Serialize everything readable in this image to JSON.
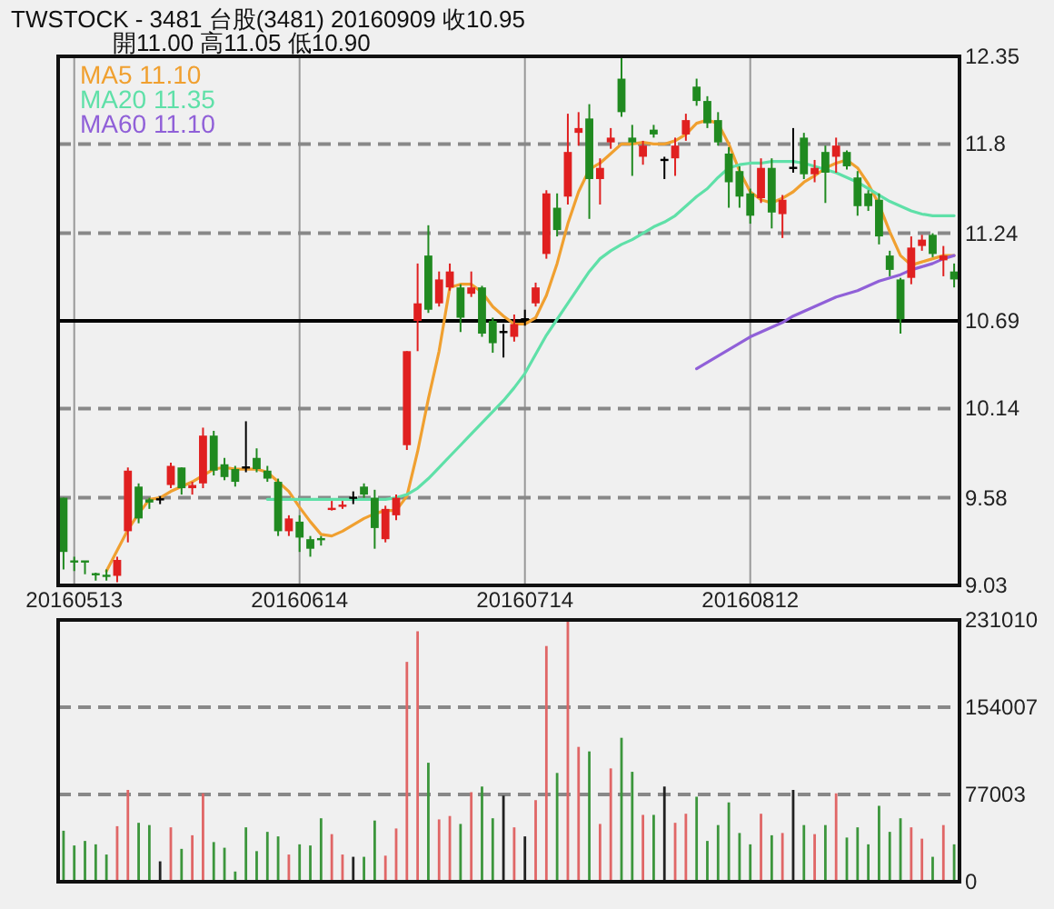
{
  "chart_data": [
    {
      "type": "candlestick",
      "title": "TWSTOCK - 3481 台股(3481) 20160909 收10.95",
      "subtitle": "開11.00 高11.05 低10.90",
      "categories": [
        null,
        "20160513",
        null,
        null,
        null,
        null,
        null,
        null,
        null,
        null,
        null,
        null,
        null,
        null,
        null,
        null,
        null,
        null,
        null,
        null,
        null,
        null,
        "20160614",
        null,
        null,
        null,
        null,
        null,
        null,
        null,
        null,
        null,
        null,
        null,
        null,
        null,
        null,
        null,
        null,
        null,
        null,
        null,
        null,
        "20160714",
        null,
        null,
        null,
        null,
        null,
        null,
        null,
        null,
        null,
        null,
        null,
        null,
        null,
        null,
        null,
        null,
        null,
        null,
        null,
        null,
        "20160812",
        null,
        null,
        null,
        null,
        null,
        null,
        null,
        null,
        null,
        null,
        null,
        null,
        null,
        null,
        null,
        null,
        null,
        null,
        null
      ],
      "ohlc": [
        [
          9.58,
          9.58,
          9.13,
          9.24
        ],
        [
          9.18,
          9.21,
          9.12,
          9.17
        ],
        [
          9.18,
          9.18,
          9.1,
          9.17
        ],
        [
          9.1,
          9.11,
          9.06,
          9.09
        ],
        [
          9.09,
          9.13,
          9.06,
          9.08
        ],
        [
          9.09,
          9.21,
          9.05,
          9.19
        ],
        [
          9.37,
          9.77,
          9.3,
          9.75
        ],
        [
          9.65,
          9.67,
          9.42,
          9.45
        ],
        [
          9.57,
          9.58,
          9.51,
          9.55
        ],
        [
          9.57,
          9.59,
          9.54,
          9.57
        ],
        [
          9.66,
          9.8,
          9.64,
          9.78
        ],
        [
          9.77,
          9.77,
          9.6,
          9.64
        ],
        [
          9.64,
          9.68,
          9.6,
          9.66
        ],
        [
          9.67,
          10.02,
          9.64,
          9.97
        ],
        [
          9.97,
          10.0,
          9.72,
          9.75
        ],
        [
          9.79,
          9.83,
          9.69,
          9.71
        ],
        [
          9.76,
          9.78,
          9.65,
          9.68
        ],
        [
          9.77,
          10.06,
          9.74,
          9.77
        ],
        [
          9.83,
          9.89,
          9.74,
          9.76
        ],
        [
          9.75,
          9.78,
          9.68,
          9.7
        ],
        [
          9.68,
          9.7,
          9.34,
          9.37
        ],
        [
          9.37,
          9.47,
          9.34,
          9.45
        ],
        [
          9.43,
          9.47,
          9.24,
          9.33
        ],
        [
          9.32,
          9.34,
          9.21,
          9.26
        ],
        [
          9.32,
          9.34,
          9.28,
          9.31
        ],
        [
          9.51,
          9.56,
          9.5,
          9.52
        ],
        [
          9.53,
          9.56,
          9.51,
          9.54
        ],
        [
          9.58,
          9.62,
          9.54,
          9.58
        ],
        [
          9.65,
          9.67,
          9.58,
          9.6
        ],
        [
          9.58,
          9.63,
          9.26,
          9.39
        ],
        [
          9.32,
          9.53,
          9.3,
          9.51
        ],
        [
          9.47,
          9.6,
          9.44,
          9.58
        ],
        [
          9.91,
          10.5,
          9.88,
          10.5
        ],
        [
          10.69,
          11.05,
          10.5,
          10.8
        ],
        [
          11.1,
          11.29,
          10.74,
          10.76
        ],
        [
          10.8,
          11.0,
          10.78,
          10.95
        ],
        [
          10.9,
          11.05,
          10.88,
          11.0
        ],
        [
          10.9,
          10.92,
          10.62,
          10.71
        ],
        [
          10.86,
          11.0,
          10.84,
          10.9
        ],
        [
          10.9,
          10.91,
          10.59,
          10.61
        ],
        [
          10.69,
          10.71,
          10.49,
          10.55
        ],
        [
          10.62,
          10.67,
          10.46,
          10.62
        ],
        [
          10.59,
          10.73,
          10.56,
          10.67
        ],
        [
          10.7,
          10.76,
          10.66,
          10.7
        ],
        [
          10.8,
          10.93,
          10.78,
          10.9
        ],
        [
          11.11,
          11.51,
          11.08,
          11.49
        ],
        [
          11.4,
          11.49,
          11.22,
          11.26
        ],
        [
          11.47,
          11.99,
          11.42,
          11.75
        ],
        [
          11.87,
          12.0,
          11.79,
          11.9
        ],
        [
          11.96,
          12.05,
          11.33,
          11.58
        ],
        [
          11.58,
          11.71,
          11.42,
          11.65
        ],
        [
          11.81,
          11.9,
          11.77,
          11.84
        ],
        [
          12.21,
          12.35,
          11.97,
          12.0
        ],
        [
          11.84,
          11.92,
          11.6,
          11.81
        ],
        [
          11.72,
          11.82,
          11.67,
          11.79
        ],
        [
          11.89,
          11.92,
          11.84,
          11.86
        ],
        [
          11.7,
          11.72,
          11.58,
          11.7
        ],
        [
          11.71,
          11.84,
          11.6,
          11.79
        ],
        [
          11.86,
          11.99,
          11.82,
          11.95
        ],
        [
          12.16,
          12.21,
          12.04,
          12.07
        ],
        [
          12.07,
          12.1,
          11.9,
          11.93
        ],
        [
          11.95,
          12.0,
          11.79,
          11.81
        ],
        [
          11.74,
          11.78,
          11.4,
          11.56
        ],
        [
          11.63,
          11.66,
          11.4,
          11.47
        ],
        [
          11.49,
          11.52,
          11.3,
          11.35
        ],
        [
          11.46,
          11.71,
          11.43,
          11.65
        ],
        [
          11.65,
          11.71,
          11.27,
          11.37
        ],
        [
          11.36,
          11.48,
          11.21,
          11.45
        ],
        [
          11.65,
          11.9,
          11.62,
          11.65
        ],
        [
          11.84,
          11.87,
          11.58,
          11.61
        ],
        [
          11.61,
          11.7,
          11.56,
          11.65
        ],
        [
          11.75,
          11.79,
          11.43,
          11.62
        ],
        [
          11.72,
          11.84,
          11.62,
          11.79
        ],
        [
          11.75,
          11.76,
          11.64,
          11.66
        ],
        [
          11.59,
          11.63,
          11.35,
          11.41
        ],
        [
          11.49,
          11.51,
          11.38,
          11.41
        ],
        [
          11.45,
          11.49,
          11.17,
          11.22
        ],
        [
          11.1,
          11.13,
          10.97,
          11.01
        ],
        [
          10.95,
          10.96,
          10.61,
          10.7
        ],
        [
          10.96,
          11.22,
          10.92,
          11.15
        ],
        [
          11.16,
          11.23,
          11.13,
          11.2
        ],
        [
          11.23,
          11.24,
          11.09,
          11.11
        ],
        [
          11.07,
          11.16,
          10.97,
          11.1
        ],
        [
          11.0,
          11.05,
          10.9,
          10.95
        ]
      ],
      "colors": [
        "#208a20",
        "#208a20",
        "#208a20",
        "#208a20",
        "#208a20",
        "#e02020",
        "#e02020",
        "#208a20",
        "#208a20",
        "#000000",
        "#e02020",
        "#208a20",
        "#e02020",
        "#e02020",
        "#208a20",
        "#208a20",
        "#208a20",
        "#000000",
        "#208a20",
        "#208a20",
        "#208a20",
        "#e02020",
        "#208a20",
        "#208a20",
        "#208a20",
        "#e02020",
        "#e02020",
        "#000000",
        "#208a20",
        "#208a20",
        "#e02020",
        "#e02020",
        "#e02020",
        "#e02020",
        "#208a20",
        "#e02020",
        "#e02020",
        "#208a20",
        "#e02020",
        "#208a20",
        "#208a20",
        "#000000",
        "#e02020",
        "#000000",
        "#e02020",
        "#e02020",
        "#208a20",
        "#e02020",
        "#e02020",
        "#208a20",
        "#e02020",
        "#e02020",
        "#208a20",
        "#208a20",
        "#e02020",
        "#208a20",
        "#000000",
        "#e02020",
        "#e02020",
        "#208a20",
        "#208a20",
        "#208a20",
        "#208a20",
        "#208a20",
        "#208a20",
        "#e02020",
        "#208a20",
        "#e02020",
        "#000000",
        "#208a20",
        "#e02020",
        "#208a20",
        "#e02020",
        "#208a20",
        "#208a20",
        "#208a20",
        "#208a20",
        "#208a20",
        "#208a20",
        "#e02020",
        "#e02020",
        "#208a20",
        "#e02020",
        "#208a20"
      ],
      "series": [
        {
          "name": "MA5 11.10",
          "type": "line",
          "color": "#f0a030",
          "values": [
            null,
            null,
            null,
            null,
            9.12,
            9.25,
            9.38,
            9.48,
            9.57,
            9.58,
            9.62,
            9.65,
            9.68,
            9.72,
            9.76,
            9.77,
            9.76,
            9.76,
            9.76,
            9.74,
            9.68,
            9.62,
            9.52,
            9.43,
            9.35,
            9.34,
            9.37,
            9.41,
            9.45,
            9.48,
            9.5,
            9.5,
            9.59,
            9.87,
            10.2,
            10.5,
            10.9,
            10.92,
            10.92,
            10.87,
            10.78,
            10.72,
            10.67,
            10.67,
            10.71,
            10.85,
            11.05,
            11.3,
            11.5,
            11.64,
            11.68,
            11.74,
            11.8,
            11.8,
            11.81,
            11.8,
            11.8,
            11.82,
            11.86,
            11.93,
            11.95,
            11.93,
            11.8,
            11.63,
            11.5,
            11.45,
            11.43,
            11.46,
            11.5,
            11.56,
            11.6,
            11.65,
            11.68,
            11.7,
            11.65,
            11.55,
            11.42,
            11.25,
            11.1,
            11.04,
            11.06,
            11.08,
            11.1,
            11.1
          ]
        },
        {
          "name": "MA20 11.35",
          "type": "line",
          "color": "#5fe0a8",
          "values": [
            null,
            null,
            null,
            null,
            null,
            null,
            null,
            null,
            null,
            null,
            null,
            null,
            null,
            null,
            null,
            null,
            null,
            null,
            null,
            9.57,
            9.57,
            9.57,
            9.57,
            9.57,
            9.57,
            9.57,
            9.57,
            9.57,
            9.57,
            9.57,
            9.57,
            9.58,
            9.6,
            9.64,
            9.7,
            9.77,
            9.84,
            9.91,
            9.98,
            10.05,
            10.12,
            10.19,
            10.27,
            10.36,
            10.48,
            10.6,
            10.7,
            10.8,
            10.9,
            11.0,
            11.08,
            11.13,
            11.17,
            11.2,
            11.24,
            11.28,
            11.31,
            11.35,
            11.41,
            11.47,
            11.52,
            11.59,
            11.65,
            11.67,
            11.68,
            11.68,
            11.69,
            11.69,
            11.69,
            11.68,
            11.66,
            11.64,
            11.62,
            11.59,
            11.56,
            11.52,
            11.48,
            11.44,
            11.41,
            11.38,
            11.36,
            11.35,
            11.35,
            11.35
          ]
        },
        {
          "name": "MA60 11.10",
          "type": "line",
          "color": "#9060d8",
          "values": [
            null,
            null,
            null,
            null,
            null,
            null,
            null,
            null,
            null,
            null,
            null,
            null,
            null,
            null,
            null,
            null,
            null,
            null,
            null,
            null,
            null,
            null,
            null,
            null,
            null,
            null,
            null,
            null,
            null,
            null,
            null,
            null,
            null,
            null,
            null,
            null,
            null,
            null,
            null,
            null,
            null,
            null,
            null,
            null,
            null,
            null,
            null,
            null,
            null,
            null,
            null,
            null,
            null,
            null,
            null,
            null,
            null,
            null,
            null,
            10.39,
            10.43,
            10.47,
            10.51,
            10.55,
            10.59,
            10.62,
            10.65,
            10.68,
            10.72,
            10.75,
            10.78,
            10.81,
            10.84,
            10.86,
            10.88,
            10.91,
            10.94,
            10.96,
            10.98,
            11.01,
            11.03,
            11.05,
            11.08,
            11.1
          ]
        }
      ],
      "ylim": [
        9.03,
        12.35
      ],
      "yticks": [
        9.03,
        9.58,
        10.14,
        10.69,
        11.24,
        11.8,
        12.35
      ],
      "grid": true,
      "legend": "top left",
      "ref_lines": [
        {
          "axis": "y",
          "value": 10.69,
          "color": "#000000"
        }
      ]
    },
    {
      "type": "bar",
      "categories": [
        null,
        null,
        null,
        null,
        null,
        null,
        null,
        null,
        null,
        null,
        null,
        null,
        null,
        null,
        null,
        null,
        null,
        null,
        null,
        null,
        null,
        null,
        null,
        null,
        null,
        null,
        null,
        null,
        null,
        null,
        null,
        null,
        null,
        null,
        null,
        null,
        null,
        null,
        null,
        null,
        null,
        null,
        null,
        null,
        null,
        null,
        null,
        null,
        null,
        null,
        null,
        null,
        null,
        null,
        null,
        null,
        null,
        null,
        null,
        null,
        null,
        null,
        null,
        null,
        null,
        null,
        null,
        null,
        null,
        null,
        null,
        null,
        null,
        null,
        null,
        null,
        null,
        null,
        null,
        null,
        null,
        null,
        null,
        null
      ],
      "values": [
        45000,
        32000,
        36000,
        33000,
        24000,
        49000,
        81000,
        52000,
        50000,
        18000,
        48000,
        29000,
        41000,
        78000,
        35000,
        30000,
        9000,
        48000,
        27000,
        44000,
        40000,
        24000,
        33000,
        32000,
        56000,
        42000,
        24000,
        22000,
        22000,
        54000,
        23000,
        47000,
        194000,
        221000,
        105000,
        55000,
        58000,
        51000,
        79000,
        84000,
        56000,
        76000,
        48000,
        40000,
        72000,
        208000,
        96000,
        231000,
        119000,
        115000,
        51000,
        100000,
        127000,
        97000,
        59000,
        59000,
        84000,
        52000,
        60000,
        75000,
        36000,
        50000,
        70000,
        43000,
        33000,
        60000,
        41000,
        43000,
        81000,
        50000,
        42000,
        50000,
        78000,
        39000,
        48000,
        33000,
        67000,
        44000,
        56000,
        48000,
        38000,
        22000,
        50000,
        33000
      ],
      "colors": [
        "#3c963c",
        "#3c963c",
        "#3c963c",
        "#3c963c",
        "#3c963c",
        "#e06666",
        "#e06666",
        "#3c963c",
        "#3c963c",
        "#222222",
        "#e06666",
        "#3c963c",
        "#e06666",
        "#e06666",
        "#3c963c",
        "#3c963c",
        "#3c963c",
        "#3c963c",
        "#3c963c",
        "#3c963c",
        "#3c963c",
        "#e06666",
        "#3c963c",
        "#3c963c",
        "#3c963c",
        "#e06666",
        "#e06666",
        "#222222",
        "#3c963c",
        "#3c963c",
        "#e06666",
        "#e06666",
        "#e06666",
        "#e06666",
        "#3c963c",
        "#e06666",
        "#e06666",
        "#3c963c",
        "#e06666",
        "#3c963c",
        "#3c963c",
        "#222222",
        "#e06666",
        "#222222",
        "#e06666",
        "#e06666",
        "#3c963c",
        "#e06666",
        "#e06666",
        "#3c963c",
        "#e06666",
        "#e06666",
        "#3c963c",
        "#3c963c",
        "#e06666",
        "#3c963c",
        "#222222",
        "#e06666",
        "#e06666",
        "#3c963c",
        "#3c963c",
        "#3c963c",
        "#3c963c",
        "#3c963c",
        "#3c963c",
        "#e06666",
        "#3c963c",
        "#e06666",
        "#222222",
        "#3c963c",
        "#e06666",
        "#3c963c",
        "#e06666",
        "#3c963c",
        "#3c963c",
        "#3c963c",
        "#3c963c",
        "#3c963c",
        "#3c963c",
        "#e06666",
        "#e06666",
        "#3c963c",
        "#e06666",
        "#3c963c"
      ],
      "ylim": [
        0,
        231010
      ],
      "yticks": [
        0,
        77003,
        154007,
        231010
      ],
      "grid": "y",
      "tick_labels": "y"
    }
  ]
}
